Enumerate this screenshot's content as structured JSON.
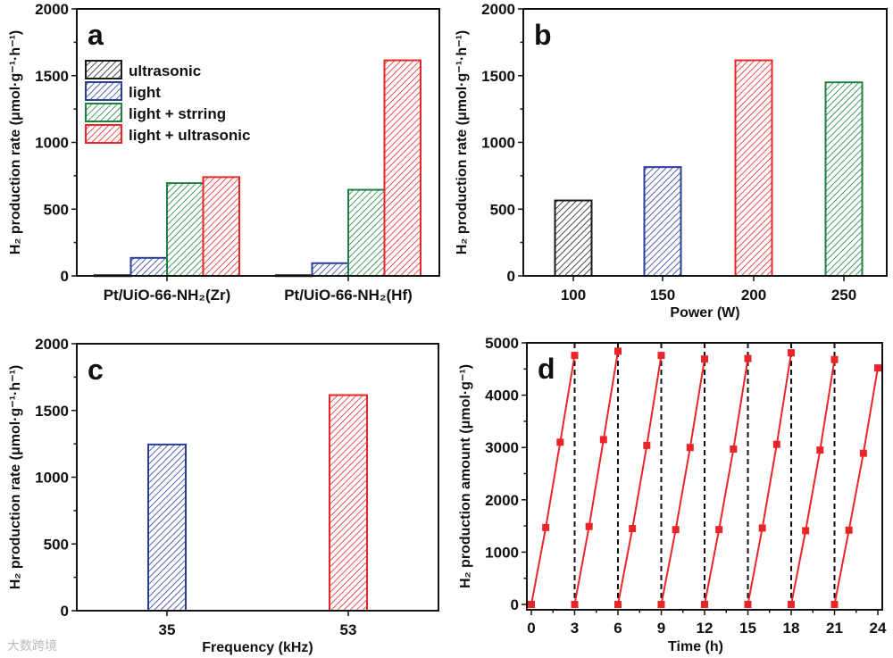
{
  "colors": {
    "black": "#1a1a1a",
    "blue": "#2b3d9c",
    "green": "#1f8040",
    "red": "#e8262a"
  },
  "watermark": "大数跨境",
  "chart_data": [
    {
      "panel": "a",
      "type": "bar",
      "ylabel": "H₂ production rate (μmol·g⁻¹·h⁻¹)",
      "xlabel": "",
      "ylim": [
        0,
        2000
      ],
      "yticks": [
        "0",
        "500",
        "1000",
        "1500",
        "2000"
      ],
      "categories": [
        "Pt/UiO-66-NH₂(Zr)",
        "Pt/UiO-66-NH₂(Hf)"
      ],
      "legend_position": "top-left",
      "series": [
        {
          "name": "ultrasonic",
          "color": "black",
          "values": [
            5,
            5
          ]
        },
        {
          "name": "light",
          "color": "blue",
          "values": [
            135,
            95
          ]
        },
        {
          "name": "light + strring",
          "color": "green",
          "values": [
            695,
            645
          ]
        },
        {
          "name": "light + ultrasonic",
          "color": "red",
          "values": [
            740,
            1615
          ]
        }
      ]
    },
    {
      "panel": "b",
      "type": "bar",
      "ylabel": "H₂ production rate (μmol·g⁻¹·h⁻¹)",
      "xlabel": "Power (W)",
      "ylim": [
        0,
        2000
      ],
      "yticks": [
        "0",
        "500",
        "1000",
        "1500",
        "2000"
      ],
      "categories": [
        "100",
        "150",
        "200",
        "250"
      ],
      "values": [
        565,
        815,
        1615,
        1450
      ],
      "colors": [
        "black",
        "blue",
        "red",
        "green"
      ]
    },
    {
      "panel": "c",
      "type": "bar",
      "ylabel": "H₂ production rate (μmol·g⁻¹·h⁻¹)",
      "xlabel": "Frequency (kHz)",
      "ylim": [
        0,
        2000
      ],
      "yticks": [
        "0",
        "500",
        "1000",
        "1500",
        "2000"
      ],
      "categories": [
        "35",
        "53"
      ],
      "values": [
        1245,
        1615
      ],
      "colors": [
        "blue",
        "red"
      ]
    },
    {
      "panel": "d",
      "type": "line",
      "ylabel": "H₂ production amount (μmol·g⁻¹)",
      "xlabel": "Time (h)",
      "xlim": [
        0,
        24
      ],
      "ylim": [
        0,
        5000
      ],
      "xticks": [
        "0",
        "3",
        "6",
        "9",
        "12",
        "15",
        "18",
        "21",
        "24"
      ],
      "yticks": [
        "0",
        "1000",
        "2000",
        "3000",
        "4000",
        "5000"
      ],
      "cycle_boundaries": [
        3,
        6,
        9,
        12,
        15,
        18,
        21
      ],
      "color": "red",
      "cycles": [
        {
          "x": [
            0,
            1,
            2,
            3
          ],
          "y": [
            0,
            1470,
            3100,
            4760
          ]
        },
        {
          "x": [
            3,
            4,
            5,
            6
          ],
          "y": [
            0,
            1490,
            3150,
            4840
          ]
        },
        {
          "x": [
            6,
            7,
            8,
            9
          ],
          "y": [
            0,
            1450,
            3040,
            4760
          ]
        },
        {
          "x": [
            9,
            10,
            11,
            12
          ],
          "y": [
            0,
            1430,
            3000,
            4690
          ]
        },
        {
          "x": [
            12,
            13,
            14,
            15
          ],
          "y": [
            0,
            1430,
            2970,
            4700
          ]
        },
        {
          "x": [
            15,
            16,
            17,
            18
          ],
          "y": [
            0,
            1460,
            3060,
            4810
          ]
        },
        {
          "x": [
            18,
            19,
            20,
            21
          ],
          "y": [
            0,
            1410,
            2950,
            4680
          ]
        },
        {
          "x": [
            21,
            22,
            23,
            24
          ],
          "y": [
            0,
            1420,
            2890,
            4520
          ]
        }
      ]
    }
  ]
}
